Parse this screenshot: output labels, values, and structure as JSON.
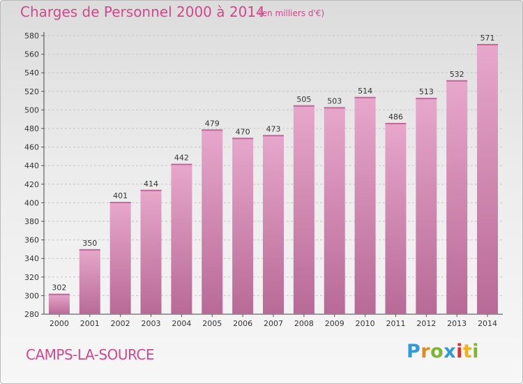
{
  "header": {
    "title": "Charges de Personnel 2000 à 2014",
    "subtitle": "(en milliers d'€)"
  },
  "footer": {
    "town": "CAMPS-LA-SOURCE",
    "logo": "Proxiti"
  },
  "colors": {
    "bar_light": "#e7a7cb",
    "bar_dark": "#b86a97",
    "text_accent": "#d2488b"
  },
  "chart_data": {
    "type": "bar",
    "title": "Charges de Personnel 2000 à 2014",
    "subtitle": "(en milliers d'€)",
    "categories": [
      "2000",
      "2001",
      "2002",
      "2003",
      "2004",
      "2005",
      "2006",
      "2007",
      "2008",
      "2009",
      "2010",
      "2011",
      "2012",
      "2013",
      "2014"
    ],
    "values": [
      302,
      350,
      401,
      414,
      442,
      479,
      470,
      473,
      505,
      503,
      514,
      486,
      513,
      532,
      571
    ],
    "ylim": [
      280,
      580
    ],
    "yticks": [
      280,
      300,
      320,
      340,
      360,
      380,
      400,
      420,
      440,
      460,
      480,
      500,
      520,
      540,
      560,
      580
    ],
    "grid": true,
    "legend": "none"
  }
}
